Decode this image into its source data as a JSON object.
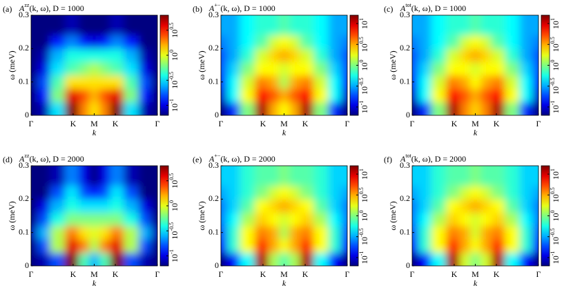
{
  "chart_data": [
    {
      "type": "heatmap",
      "panel_label": "(a)",
      "title": {
        "base": "A",
        "sup": "zz",
        "rest": "(k, ω), D = 1000"
      },
      "xlabel": "k",
      "ylabel": "ω (meV)",
      "xlim": [
        0,
        1
      ],
      "ylim": [
        0,
        0.3
      ],
      "xticks": [
        {
          "value": 0,
          "label": "Γ"
        },
        {
          "value": 0.333,
          "label": "K"
        },
        {
          "value": 0.5,
          "label": "M"
        },
        {
          "value": 0.667,
          "label": "K"
        },
        {
          "value": 1,
          "label": "Γ"
        }
      ],
      "yticks": [
        0,
        0.1,
        0.2,
        0.3
      ],
      "clim": [
        -1.2,
        0.8
      ],
      "cticks": [
        {
          "value": -1,
          "label": "10",
          "sup": "-1"
        },
        {
          "value": -0.5,
          "label": "10",
          "sup": "-0.5"
        },
        {
          "value": 0,
          "label": "10",
          "sup": "0"
        },
        {
          "value": 0.5,
          "label": "10",
          "sup": "0.5"
        }
      ],
      "x": [
        0,
        0.1,
        0.2,
        0.333,
        0.42,
        0.5,
        0.58,
        0.667,
        0.8,
        0.9,
        1
      ],
      "y": [
        0.02,
        0.06,
        0.1,
        0.14,
        0.18,
        0.22,
        0.26
      ],
      "z": [
        [
          -1.2,
          -1.1,
          -0.5,
          0.8,
          0.3,
          0.1,
          0.3,
          0.8,
          -0.5,
          -1.1,
          -1.2
        ],
        [
          -1.2,
          -0.9,
          -0.2,
          0.6,
          0.4,
          0.2,
          0.4,
          0.6,
          -0.2,
          -0.9,
          -1.2
        ],
        [
          -1.2,
          -0.8,
          -0.3,
          0.1,
          0.1,
          0.1,
          0.1,
          0.1,
          -0.3,
          -0.8,
          -1.2
        ],
        [
          -1.2,
          -1.0,
          -0.5,
          -0.3,
          -0.2,
          -0.1,
          -0.2,
          -0.3,
          -0.5,
          -1.0,
          -1.2
        ],
        [
          -1.2,
          -1.1,
          -0.6,
          -0.4,
          -0.4,
          -0.4,
          -0.4,
          -0.4,
          -0.6,
          -1.1,
          -1.2
        ],
        [
          -1.2,
          -1.2,
          -0.9,
          -0.7,
          -0.9,
          -1.0,
          -0.9,
          -0.7,
          -0.9,
          -1.2,
          -1.2
        ],
        [
          -1.2,
          -1.2,
          -1.2,
          -1.1,
          -1.2,
          -1.2,
          -1.2,
          -1.1,
          -1.2,
          -1.2,
          -1.2
        ]
      ]
    },
    {
      "type": "heatmap",
      "panel_label": "(b)",
      "title": {
        "base": "A",
        "sup": "+−",
        "rest": "(k, ω), D = 1000"
      },
      "xlabel": "k",
      "ylabel": "ω (meV)",
      "xlim": [
        0,
        1
      ],
      "ylim": [
        0,
        0.3
      ],
      "xticks": [
        {
          "value": 0,
          "label": "Γ"
        },
        {
          "value": 0.333,
          "label": "K"
        },
        {
          "value": 0.5,
          "label": "M"
        },
        {
          "value": 0.667,
          "label": "K"
        },
        {
          "value": 1,
          "label": "Γ"
        }
      ],
      "yticks": [
        0,
        0.1,
        0.2,
        0.3
      ],
      "clim": [
        -1.2,
        1.2
      ],
      "cticks": [
        {
          "value": -1,
          "label": "10",
          "sup": "-1"
        },
        {
          "value": -0.5,
          "label": "10",
          "sup": "-0.5"
        },
        {
          "value": 0,
          "label": "10",
          "sup": "0"
        },
        {
          "value": 0.5,
          "label": "10",
          "sup": "0.5"
        },
        {
          "value": 1,
          "label": "10",
          "sup": "1"
        }
      ],
      "x": [
        0,
        0.1,
        0.2,
        0.333,
        0.42,
        0.5,
        0.58,
        0.667,
        0.8,
        0.9,
        1
      ],
      "y": [
        0.02,
        0.06,
        0.1,
        0.14,
        0.18,
        0.22,
        0.26
      ],
      "z": [
        [
          -1.2,
          -0.8,
          0.0,
          1.1,
          0.5,
          0.3,
          0.5,
          1.1,
          0.0,
          -0.8,
          -1.2
        ],
        [
          -1.0,
          -0.3,
          0.3,
          0.9,
          0.7,
          0.5,
          0.7,
          0.9,
          0.3,
          -0.3,
          -1.0
        ],
        [
          -0.8,
          -0.3,
          0.2,
          0.6,
          0.5,
          0.1,
          0.5,
          0.6,
          0.2,
          -0.3,
          -0.8
        ],
        [
          -0.7,
          -0.4,
          0.0,
          0.3,
          0.3,
          0.2,
          0.3,
          0.3,
          0.0,
          -0.4,
          -0.7
        ],
        [
          -0.7,
          -0.5,
          -0.2,
          0.2,
          0.4,
          0.5,
          0.4,
          0.2,
          -0.2,
          -0.5,
          -0.7
        ],
        [
          -0.6,
          -0.5,
          -0.3,
          -0.1,
          0.2,
          0.3,
          0.2,
          -0.1,
          -0.3,
          -0.5,
          -0.6
        ],
        [
          -0.5,
          -0.5,
          -0.3,
          -0.2,
          -0.2,
          -0.1,
          -0.2,
          -0.2,
          -0.3,
          -0.5,
          -0.5
        ]
      ]
    },
    {
      "type": "heatmap",
      "panel_label": "(c)",
      "title": {
        "base": "A",
        "sup": "tot",
        "rest": "(k, ω), D = 1000"
      },
      "xlabel": "k",
      "ylabel": "ω (meV)",
      "xlim": [
        0,
        1
      ],
      "ylim": [
        0,
        0.3
      ],
      "xticks": [
        {
          "value": 0,
          "label": "Γ"
        },
        {
          "value": 0.333,
          "label": "K"
        },
        {
          "value": 0.5,
          "label": "M"
        },
        {
          "value": 0.667,
          "label": "K"
        },
        {
          "value": 1,
          "label": "Γ"
        }
      ],
      "yticks": [
        0,
        0.1,
        0.2,
        0.3
      ],
      "clim": [
        -1.2,
        1.2
      ],
      "cticks": [
        {
          "value": -1,
          "label": "10",
          "sup": "-1"
        },
        {
          "value": -0.5,
          "label": "10",
          "sup": "-0.5"
        },
        {
          "value": 0,
          "label": "10",
          "sup": "0"
        },
        {
          "value": 0.5,
          "label": "10",
          "sup": "0.5"
        },
        {
          "value": 1,
          "label": "10",
          "sup": "1"
        }
      ],
      "x": [
        0,
        0.1,
        0.2,
        0.333,
        0.42,
        0.5,
        0.58,
        0.667,
        0.8,
        0.9,
        1
      ],
      "y": [
        0.02,
        0.06,
        0.1,
        0.14,
        0.18,
        0.22,
        0.26
      ],
      "z": [
        [
          -1.2,
          -0.8,
          0.0,
          1.1,
          0.6,
          0.4,
          0.6,
          1.1,
          0.0,
          -0.8,
          -1.2
        ],
        [
          -1.0,
          -0.3,
          0.3,
          0.9,
          0.7,
          0.5,
          0.7,
          0.9,
          0.3,
          -0.3,
          -1.0
        ],
        [
          -0.8,
          -0.3,
          0.2,
          0.6,
          0.5,
          0.3,
          0.5,
          0.6,
          0.2,
          -0.3,
          -0.8
        ],
        [
          -0.7,
          -0.4,
          0.0,
          0.3,
          0.3,
          0.2,
          0.3,
          0.3,
          0.0,
          -0.4,
          -0.7
        ],
        [
          -0.7,
          -0.5,
          -0.2,
          0.2,
          0.4,
          0.5,
          0.4,
          0.2,
          -0.2,
          -0.5,
          -0.7
        ],
        [
          -0.6,
          -0.5,
          -0.3,
          -0.1,
          0.2,
          0.3,
          0.2,
          -0.1,
          -0.3,
          -0.5,
          -0.6
        ],
        [
          -0.5,
          -0.5,
          -0.3,
          -0.2,
          -0.2,
          -0.1,
          -0.2,
          -0.2,
          -0.3,
          -0.5,
          -0.5
        ]
      ]
    },
    {
      "type": "heatmap",
      "panel_label": "(d)",
      "title": {
        "base": "A",
        "sup": "zz",
        "rest": "(k, ω), D = 2000"
      },
      "xlabel": "k",
      "ylabel": "ω (meV)",
      "xlim": [
        0,
        1
      ],
      "ylim": [
        0,
        0.3
      ],
      "xticks": [
        {
          "value": 0,
          "label": "Γ"
        },
        {
          "value": 0.333,
          "label": "K"
        },
        {
          "value": 0.5,
          "label": "M"
        },
        {
          "value": 0.667,
          "label": "K"
        },
        {
          "value": 1,
          "label": "Γ"
        }
      ],
      "yticks": [
        0,
        0.1,
        0.2,
        0.3
      ],
      "clim": [
        -1.2,
        0.8
      ],
      "cticks": [
        {
          "value": -1,
          "label": "10",
          "sup": "-1"
        },
        {
          "value": -0.5,
          "label": "10",
          "sup": "-0.5"
        },
        {
          "value": 0,
          "label": "10",
          "sup": "0"
        },
        {
          "value": 0.5,
          "label": "10",
          "sup": "0.5"
        }
      ],
      "x": [
        0,
        0.1,
        0.2,
        0.333,
        0.42,
        0.5,
        0.58,
        0.667,
        0.8,
        0.9,
        1
      ],
      "y": [
        0.02,
        0.06,
        0.1,
        0.14,
        0.18,
        0.22,
        0.26
      ],
      "z": [
        [
          -1.2,
          -1.1,
          -0.8,
          0.8,
          -0.3,
          -0.6,
          -0.3,
          0.8,
          -0.8,
          -1.1,
          -1.2
        ],
        [
          -1.2,
          -0.8,
          -0.1,
          0.6,
          0.3,
          -0.1,
          0.3,
          0.6,
          -0.1,
          -0.8,
          -1.2
        ],
        [
          -1.1,
          -0.6,
          -0.1,
          0.3,
          0.1,
          0.0,
          0.1,
          0.3,
          -0.1,
          -0.6,
          -1.1
        ],
        [
          -1.2,
          -0.8,
          -0.4,
          -0.2,
          -0.2,
          -0.2,
          -0.2,
          -0.2,
          -0.4,
          -0.8,
          -1.2
        ],
        [
          -1.2,
          -1.0,
          -0.6,
          -0.4,
          -0.5,
          -0.5,
          -0.5,
          -0.4,
          -0.6,
          -1.0,
          -1.2
        ],
        [
          -1.2,
          -1.2,
          -0.8,
          -0.5,
          -0.8,
          -0.9,
          -0.8,
          -0.5,
          -0.8,
          -1.2,
          -1.2
        ],
        [
          -1.2,
          -1.2,
          -1.1,
          -0.7,
          -1.0,
          -1.2,
          -1.0,
          -0.7,
          -1.1,
          -1.2,
          -1.2
        ]
      ]
    },
    {
      "type": "heatmap",
      "panel_label": "(e)",
      "title": {
        "base": "A",
        "sup": "+−",
        "rest": "(k, ω), D = 2000"
      },
      "xlabel": "k",
      "ylabel": "ω (meV)",
      "xlim": [
        0,
        1
      ],
      "ylim": [
        0,
        0.3
      ],
      "xticks": [
        {
          "value": 0,
          "label": "Γ"
        },
        {
          "value": 0.333,
          "label": "K"
        },
        {
          "value": 0.5,
          "label": "M"
        },
        {
          "value": 0.667,
          "label": "K"
        },
        {
          "value": 1,
          "label": "Γ"
        }
      ],
      "yticks": [
        0,
        0.1,
        0.2,
        0.3
      ],
      "clim": [
        -1.2,
        1.2
      ],
      "cticks": [
        {
          "value": -1,
          "label": "10",
          "sup": "-1"
        },
        {
          "value": -0.5,
          "label": "10",
          "sup": "-0.5"
        },
        {
          "value": 0,
          "label": "10",
          "sup": "0"
        },
        {
          "value": 0.5,
          "label": "10",
          "sup": "0.5"
        },
        {
          "value": 1,
          "label": "10",
          "sup": "1"
        }
      ],
      "x": [
        0,
        0.1,
        0.2,
        0.333,
        0.42,
        0.5,
        0.58,
        0.667,
        0.8,
        0.9,
        1
      ],
      "y": [
        0.02,
        0.06,
        0.1,
        0.14,
        0.18,
        0.22,
        0.26
      ],
      "z": [
        [
          -1.2,
          -0.9,
          -0.3,
          1.1,
          0.1,
          -0.1,
          0.1,
          1.1,
          -0.3,
          -0.9,
          -1.2
        ],
        [
          -0.9,
          -0.2,
          0.3,
          0.8,
          0.5,
          0.3,
          0.5,
          0.8,
          0.3,
          -0.2,
          -0.9
        ],
        [
          -0.7,
          -0.2,
          0.3,
          0.6,
          0.5,
          0.1,
          0.5,
          0.6,
          0.3,
          -0.2,
          -0.7
        ],
        [
          -0.6,
          -0.3,
          0.1,
          0.4,
          0.3,
          0.2,
          0.3,
          0.4,
          0.1,
          -0.3,
          -0.6
        ],
        [
          -0.6,
          -0.4,
          -0.1,
          0.3,
          0.4,
          0.5,
          0.4,
          0.3,
          -0.1,
          -0.4,
          -0.6
        ],
        [
          -0.5,
          -0.4,
          -0.2,
          0.0,
          0.2,
          0.3,
          0.2,
          0.0,
          -0.2,
          -0.4,
          -0.5
        ],
        [
          -0.4,
          -0.4,
          -0.2,
          -0.1,
          -0.1,
          0.0,
          -0.1,
          -0.1,
          -0.2,
          -0.4,
          -0.4
        ]
      ]
    },
    {
      "type": "heatmap",
      "panel_label": "(f)",
      "title": {
        "base": "A",
        "sup": "tot",
        "rest": "(k, ω), D = 2000"
      },
      "xlabel": "k",
      "ylabel": "ω (meV)",
      "xlim": [
        0,
        1
      ],
      "ylim": [
        0,
        0.3
      ],
      "xticks": [
        {
          "value": 0,
          "label": "Γ"
        },
        {
          "value": 0.333,
          "label": "K"
        },
        {
          "value": 0.5,
          "label": "M"
        },
        {
          "value": 0.667,
          "label": "K"
        },
        {
          "value": 1,
          "label": "Γ"
        }
      ],
      "yticks": [
        0,
        0.1,
        0.2,
        0.3
      ],
      "clim": [
        -1.2,
        1.2
      ],
      "cticks": [
        {
          "value": -1,
          "label": "10",
          "sup": "-1"
        },
        {
          "value": -0.5,
          "label": "10",
          "sup": "-0.5"
        },
        {
          "value": 0,
          "label": "10",
          "sup": "0"
        },
        {
          "value": 0.5,
          "label": "10",
          "sup": "0.5"
        },
        {
          "value": 1,
          "label": "10",
          "sup": "1"
        }
      ],
      "x": [
        0,
        0.1,
        0.2,
        0.333,
        0.42,
        0.5,
        0.58,
        0.667,
        0.8,
        0.9,
        1
      ],
      "y": [
        0.02,
        0.06,
        0.1,
        0.14,
        0.18,
        0.22,
        0.26
      ],
      "z": [
        [
          -1.2,
          -0.9,
          -0.3,
          1.1,
          0.2,
          0.0,
          0.2,
          1.1,
          -0.3,
          -0.9,
          -1.2
        ],
        [
          -0.9,
          -0.2,
          0.3,
          0.8,
          0.5,
          0.3,
          0.5,
          0.8,
          0.3,
          -0.2,
          -0.9
        ],
        [
          -0.7,
          -0.2,
          0.3,
          0.6,
          0.5,
          0.2,
          0.5,
          0.6,
          0.3,
          -0.2,
          -0.7
        ],
        [
          -0.6,
          -0.3,
          0.1,
          0.4,
          0.3,
          0.2,
          0.3,
          0.4,
          0.1,
          -0.3,
          -0.6
        ],
        [
          -0.6,
          -0.4,
          -0.1,
          0.3,
          0.4,
          0.5,
          0.4,
          0.3,
          -0.1,
          -0.4,
          -0.6
        ],
        [
          -0.5,
          -0.4,
          -0.2,
          0.0,
          0.2,
          0.3,
          0.2,
          0.0,
          -0.2,
          -0.4,
          -0.5
        ],
        [
          -0.4,
          -0.4,
          -0.2,
          -0.1,
          -0.1,
          0.0,
          -0.1,
          -0.1,
          -0.2,
          -0.4,
          -0.4
        ]
      ]
    }
  ]
}
